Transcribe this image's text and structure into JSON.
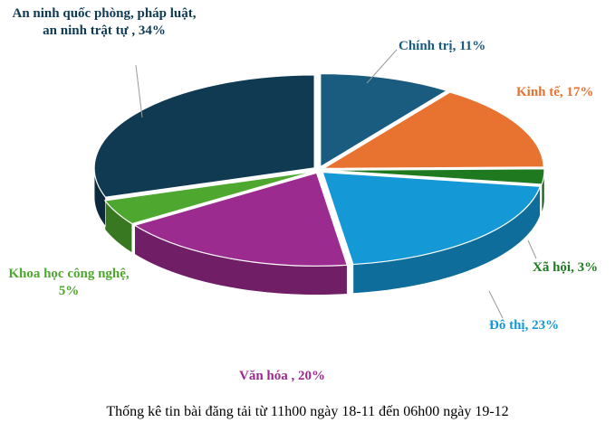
{
  "chart_data": {
    "type": "pie",
    "title": "Thống kê tin bài đăng tải từ 11h00 ngày 18-11 đến 06h00 ngày 19-12",
    "values": [
      11,
      17,
      3,
      23,
      20,
      5,
      34
    ],
    "value_labels": [
      "Chính trị, 11%",
      "Kinh tế, 17%",
      "Xã hội, 3%",
      "Đô thị, 23%",
      "Văn hóa , 20%",
      "Khoa học công nghệ, 5%",
      "An ninh quốc phòng, pháp luật, an ninh trật tự , 34%"
    ],
    "colors": [
      "#1a5b80",
      "#e87230",
      "#1f7a1f",
      "#1498d6",
      "#9b2b8f",
      "#4ea72e",
      "#0f3a52"
    ]
  }
}
